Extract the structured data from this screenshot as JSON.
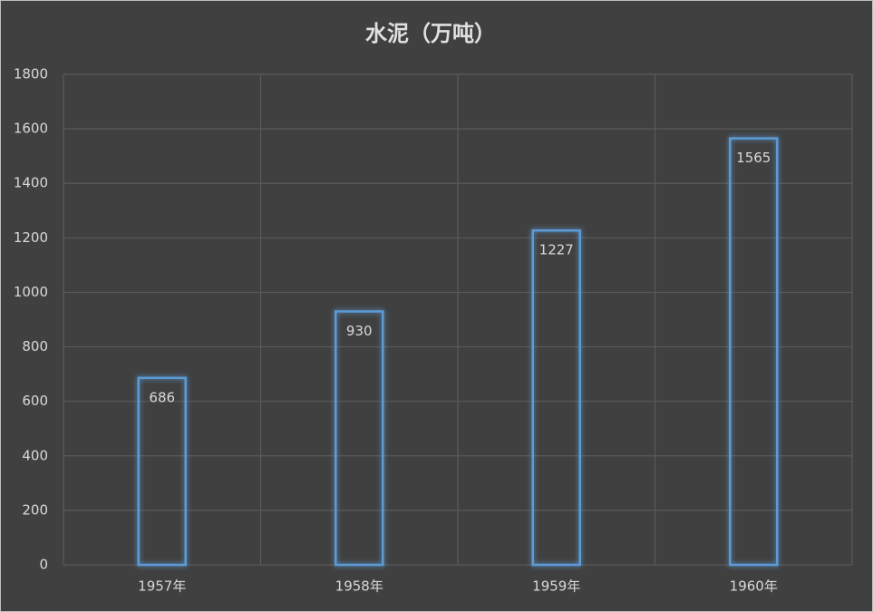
{
  "chart_data": {
    "type": "bar",
    "title": "水泥（万吨）",
    "categories": [
      "1957年",
      "1958年",
      "1959年",
      "1960年"
    ],
    "values": [
      686,
      930,
      1227,
      1565
    ],
    "color": "#5b9bd5",
    "ylim": [
      0,
      1800
    ],
    "yticks": [
      0,
      200,
      400,
      600,
      800,
      1000,
      1200,
      1400,
      1600,
      1800
    ],
    "grid": true
  }
}
